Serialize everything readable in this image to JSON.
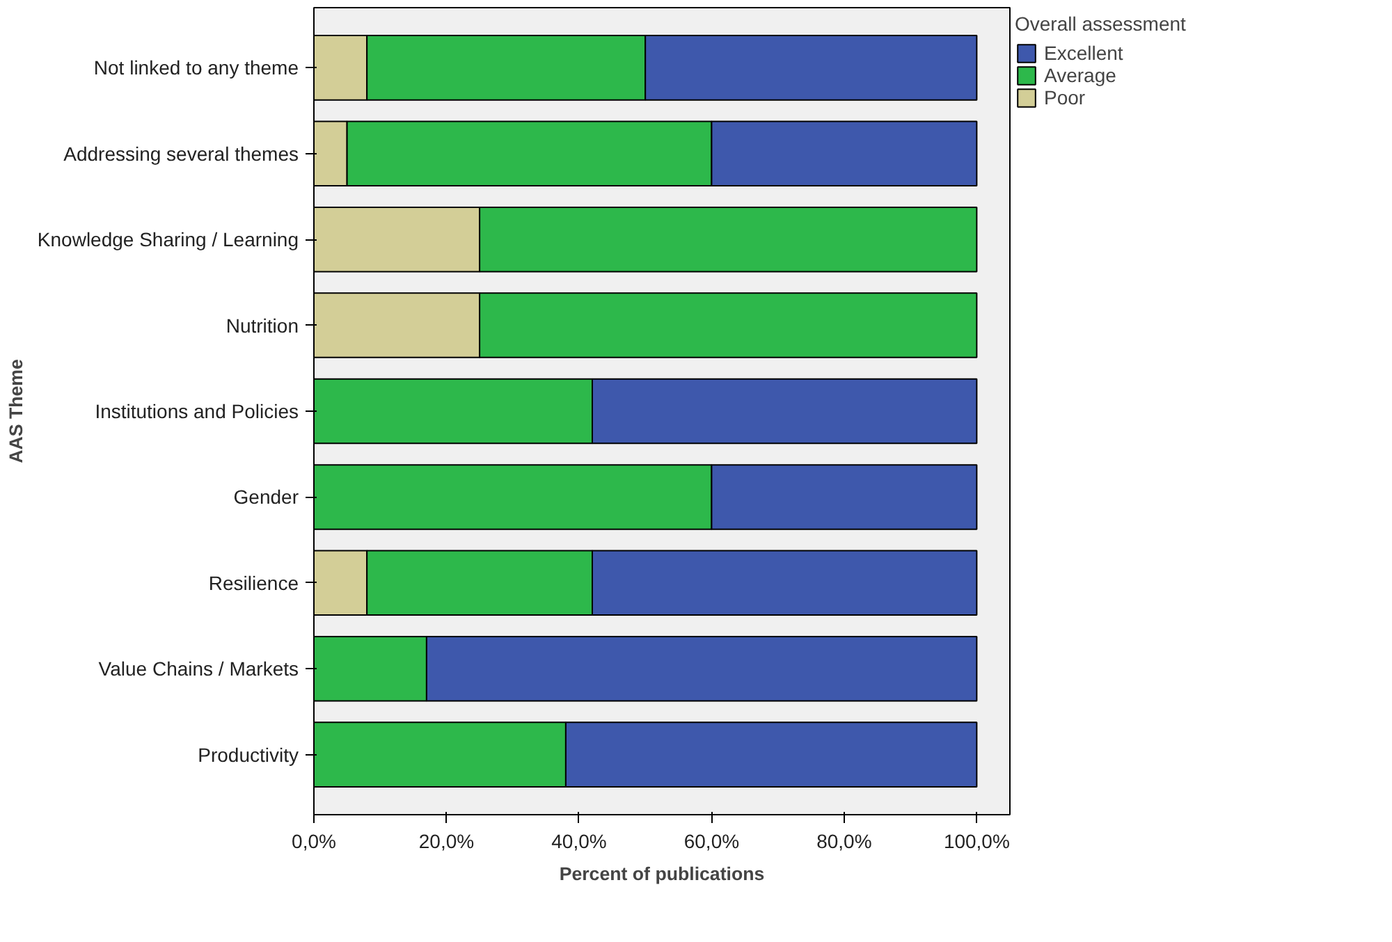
{
  "chart_data": {
    "type": "bar",
    "orientation": "horizontal",
    "stacked": true,
    "xlabel": "Percent of publications",
    "ylabel": "AAS Theme",
    "legend_title": "Overall assessment",
    "legend": "right",
    "grid": false,
    "categories": [
      "Not linked to any theme",
      "Addressing several themes",
      "Knowledge Sharing / Learning",
      "Nutrition",
      "Institutions and Policies",
      "Gender",
      "Resilience",
      "Value Chains / Markets",
      "Productivity"
    ],
    "xlim": [
      0,
      105
    ],
    "xticks": [
      {
        "value": 0,
        "label": "0,0%"
      },
      {
        "value": 20,
        "label": "20,0%"
      },
      {
        "value": 40,
        "label": "40,0%"
      },
      {
        "value": 60,
        "label": "60,0%"
      },
      {
        "value": 80,
        "label": "80,0%"
      },
      {
        "value": 100,
        "label": "100,0%"
      }
    ],
    "series": [
      {
        "name": "Poor",
        "color": "#d3ce97",
        "values": [
          8,
          5,
          25,
          25,
          null,
          null,
          8,
          null,
          null
        ]
      },
      {
        "name": "Average",
        "color": "#2db84b",
        "values": [
          42,
          55,
          75,
          75,
          42,
          60,
          34,
          17,
          38
        ]
      },
      {
        "name": "Excellent",
        "color": "#3e58ac",
        "values": [
          50,
          40,
          null,
          null,
          58,
          40,
          58,
          83,
          62
        ]
      }
    ]
  }
}
